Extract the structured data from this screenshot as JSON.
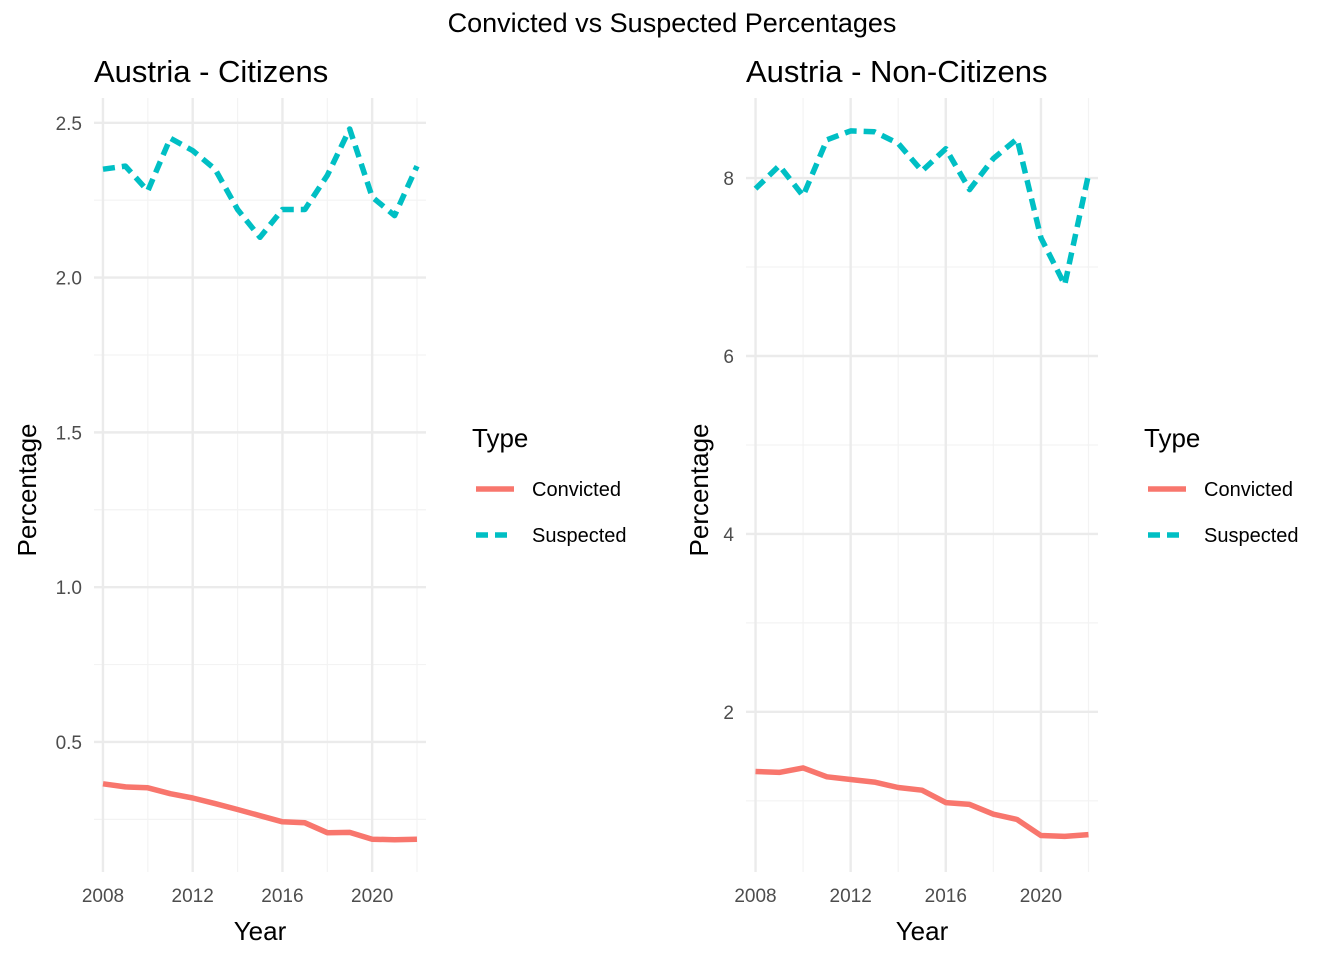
{
  "figure": {
    "suptitle": "Convicted vs Suspected Percentages"
  },
  "colors": {
    "convicted": "#F8766D",
    "suspected": "#00BFC4",
    "grid_major": "#EBEBEB",
    "grid_minor": "#F3F3F3",
    "tick_text": "#4D4D4D"
  },
  "legend": {
    "title": "Type",
    "entries": [
      {
        "name": "Convicted",
        "style": "solid"
      },
      {
        "name": "Suspected",
        "style": "dashed"
      }
    ]
  },
  "chart_data": [
    {
      "type": "line",
      "title": "Austria - Citizens",
      "xlabel": "Year",
      "ylabel": "Percentage",
      "xlim": [
        2007.6,
        2022.4
      ],
      "ylim": [
        0.08,
        2.58
      ],
      "x_ticks": [
        2008,
        2012,
        2016,
        2020
      ],
      "y_ticks": [
        0.5,
        1.0,
        1.5,
        2.0,
        2.5
      ],
      "y_tick_labels": [
        "0.5",
        "1.0",
        "1.5",
        "2.0",
        "2.5"
      ],
      "grid": true,
      "legend_position": "right",
      "x": [
        2008,
        2009,
        2010,
        2011,
        2012,
        2013,
        2014,
        2015,
        2016,
        2017,
        2018,
        2019,
        2020,
        2021,
        2022
      ],
      "series": [
        {
          "name": "Convicted",
          "values": [
            0.365,
            0.355,
            0.352,
            0.333,
            0.319,
            0.301,
            0.282,
            0.262,
            0.242,
            0.239,
            0.207,
            0.208,
            0.186,
            0.184,
            0.186
          ]
        },
        {
          "name": "Suspected",
          "values": [
            2.35,
            2.36,
            2.28,
            2.45,
            2.41,
            2.35,
            2.22,
            2.13,
            2.22,
            2.22,
            2.33,
            2.48,
            2.26,
            2.2,
            2.36
          ]
        }
      ]
    },
    {
      "type": "line",
      "title": "Austria - Non-Citizens",
      "xlabel": "Year",
      "ylabel": "Percentage",
      "xlim": [
        2007.6,
        2022.4
      ],
      "ylim": [
        0.2,
        8.9
      ],
      "x_ticks": [
        2008,
        2012,
        2016,
        2020
      ],
      "y_ticks": [
        2,
        4,
        6,
        8
      ],
      "y_tick_labels": [
        "2",
        "4",
        "6",
        "8"
      ],
      "grid": true,
      "legend_position": "right",
      "x": [
        2008,
        2009,
        2010,
        2011,
        2012,
        2013,
        2014,
        2015,
        2016,
        2017,
        2018,
        2019,
        2020,
        2021,
        2022
      ],
      "series": [
        {
          "name": "Convicted",
          "values": [
            1.33,
            1.32,
            1.37,
            1.27,
            1.24,
            1.21,
            1.15,
            1.12,
            0.98,
            0.96,
            0.85,
            0.79,
            0.61,
            0.6,
            0.62
          ]
        },
        {
          "name": "Suspected",
          "values": [
            7.88,
            8.14,
            7.8,
            8.43,
            8.53,
            8.52,
            8.39,
            8.08,
            8.33,
            7.87,
            8.22,
            8.44,
            7.33,
            6.8,
            8.04
          ]
        }
      ]
    }
  ]
}
